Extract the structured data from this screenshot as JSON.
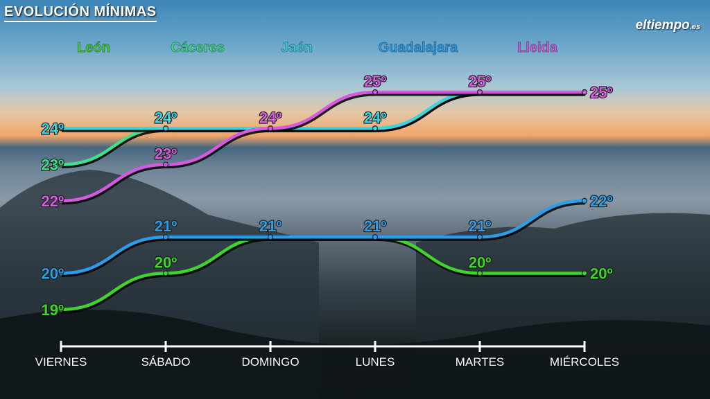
{
  "title": "EVOLUCIÓN MÍNIMAS",
  "logo": {
    "main": "eltiempo",
    "suffix": ".es"
  },
  "chart_data": {
    "type": "line",
    "title": "EVOLUCIÓN MÍNIMAS",
    "categories": [
      "VIERNES",
      "SÁBADO",
      "DOMINGO",
      "LUNES",
      "MARTES",
      "MIÉRCOLES"
    ],
    "unit": "º",
    "ylim": [
      19,
      25
    ],
    "legend": "top",
    "series": [
      {
        "name": "León",
        "color": "#3fd52a",
        "values": [
          19,
          20,
          21,
          21,
          20,
          20
        ],
        "labels": [
          true,
          true,
          false,
          false,
          true,
          true
        ]
      },
      {
        "name": "Cáceres",
        "color": "#3ee08a",
        "values": [
          23,
          24,
          24,
          24,
          25,
          25
        ],
        "labels": [
          true,
          false,
          false,
          false,
          false,
          false
        ]
      },
      {
        "name": "Jaén",
        "color": "#3ad3e0",
        "values": [
          24,
          24,
          24,
          24,
          25,
          25
        ],
        "labels": [
          true,
          true,
          false,
          true,
          false,
          false
        ]
      },
      {
        "name": "Guadalajara",
        "color": "#2a9ee8",
        "values": [
          20,
          21,
          21,
          21,
          21,
          22
        ],
        "labels": [
          true,
          true,
          true,
          true,
          true,
          true
        ]
      },
      {
        "name": "Lleida",
        "color": "#d65ae0",
        "values": [
          22,
          23,
          24,
          25,
          25,
          25
        ],
        "labels": [
          true,
          true,
          true,
          true,
          true,
          true
        ]
      }
    ]
  }
}
